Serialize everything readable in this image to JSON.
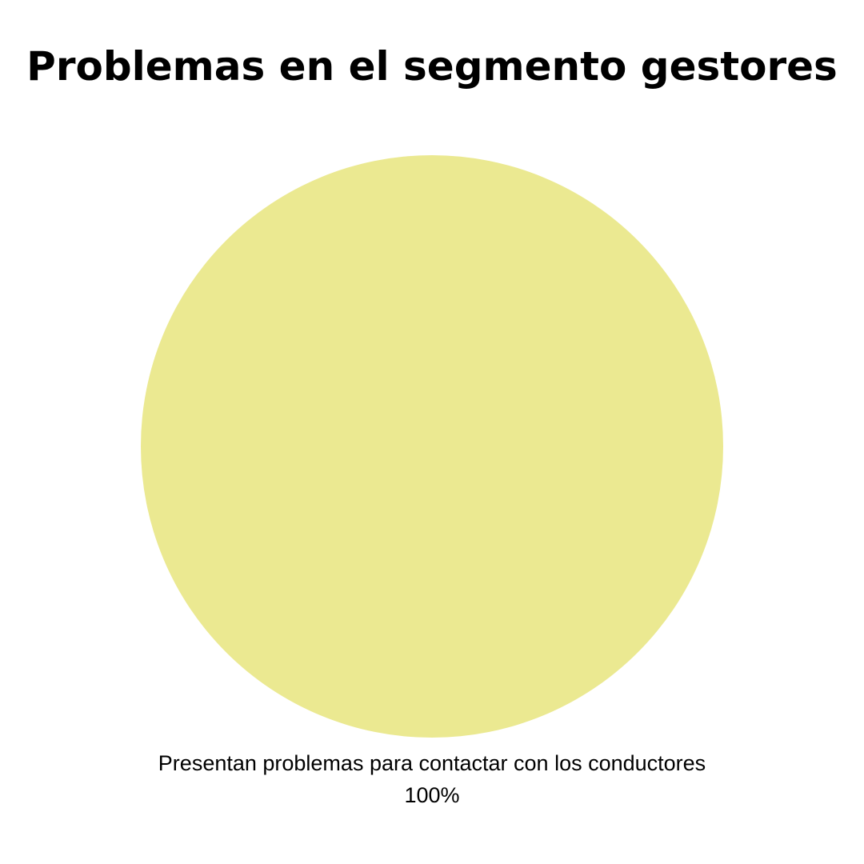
{
  "chart_data": {
    "type": "pie",
    "title": "Problemas en el segmento gestores",
    "slices": [
      {
        "label": "Presentan problemas para contactar con los conductores",
        "value": 100,
        "value_label": "100%",
        "color": "#EBE991"
      }
    ]
  }
}
